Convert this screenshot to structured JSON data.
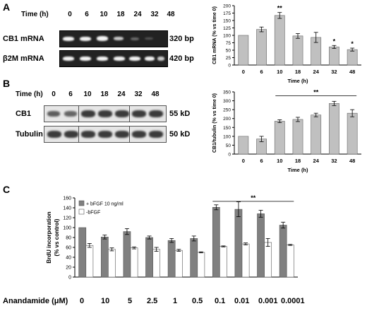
{
  "panels": {
    "A": {
      "letter": "A",
      "time_label": "Time (h)",
      "time_points": [
        "0",
        "6",
        "10",
        "18",
        "24",
        "32",
        "48"
      ],
      "gel_rows": [
        {
          "label": "CB1 mRNA",
          "size": "320 bp"
        },
        {
          "label": "β2M mRNA",
          "size": "420 bp"
        }
      ]
    },
    "B": {
      "letter": "B",
      "time_label": "Time (h)",
      "time_points": [
        "0",
        "6",
        "10",
        "18",
        "24",
        "32",
        "48"
      ],
      "blot_rows": [
        {
          "label": "CB1",
          "size": "55 kD"
        },
        {
          "label": "Tubulin",
          "size": "50 kD"
        }
      ]
    },
    "C": {
      "letter": "C",
      "anandamide_label": "Anandamide (μM)",
      "anandamide_values": [
        "0",
        "10",
        "5",
        "2.5",
        "1",
        "0.5",
        "0.1",
        "0.01",
        "0.001",
        "0.0001"
      ]
    }
  },
  "chart_data": [
    {
      "id": "A",
      "type": "bar",
      "categories": [
        "0",
        "6",
        "10",
        "18",
        "24",
        "32",
        "48"
      ],
      "values": [
        100,
        120,
        167,
        98,
        93,
        61,
        52
      ],
      "errors": [
        0,
        8,
        10,
        8,
        17,
        5,
        5
      ],
      "xlabel": "Time (h)",
      "ylabel": "CB1 mRNA (% vs time 0)",
      "ylim": [
        0,
        200
      ],
      "yticks": [
        0,
        25,
        50,
        75,
        100,
        125,
        150,
        175,
        200
      ],
      "annotations": [
        {
          "category": "10",
          "text": "**"
        },
        {
          "category": "32",
          "text": "*"
        },
        {
          "category": "48",
          "text": "*"
        }
      ],
      "bar_color": "#c0c0c0"
    },
    {
      "id": "B",
      "type": "bar",
      "categories": [
        "0",
        "6",
        "10",
        "18",
        "24",
        "32",
        "48"
      ],
      "values": [
        100,
        85,
        185,
        195,
        220,
        285,
        230
      ],
      "errors": [
        0,
        15,
        8,
        12,
        10,
        12,
        20
      ],
      "xlabel": "Time (h)",
      "ylabel": "CB1/tubulin (% vs time 0)",
      "ylim": [
        0,
        350
      ],
      "yticks": [
        0,
        50,
        100,
        150,
        200,
        250,
        300,
        350
      ],
      "annotations": [
        {
          "text": "**",
          "from": "10",
          "to": "48"
        }
      ],
      "bar_color": "#c0c0c0"
    },
    {
      "id": "C",
      "type": "bar",
      "categories": [
        "0",
        "10",
        "5",
        "2.5",
        "1",
        "0.5",
        "0.1",
        "0.01",
        "0.001",
        "0.0001"
      ],
      "series": [
        {
          "name": "+ bFGF 10 ng/ml",
          "values": [
            100,
            81,
            92,
            80,
            74,
            78,
            141,
            137,
            128,
            105
          ],
          "errors": [
            0,
            4,
            6,
            3,
            4,
            5,
            5,
            15,
            7,
            6
          ],
          "color": "#808080"
        },
        {
          "name": "-bFGF",
          "values": [
            64,
            56,
            59,
            56,
            54,
            50,
            62,
            67,
            70,
            65
          ],
          "errors": [
            4,
            3,
            2,
            4,
            2,
            1,
            1,
            2,
            8,
            1
          ],
          "color": "#ffffff"
        }
      ],
      "ylabel": "BrdU incorporation\n(% vs control)",
      "ylim": [
        0,
        160
      ],
      "yticks": [
        0,
        20,
        40,
        60,
        80,
        100,
        120,
        140,
        160
      ],
      "annotations": [
        {
          "text": "**",
          "from": "0.1",
          "to": "0.0001"
        }
      ],
      "legend": "top-left"
    }
  ]
}
